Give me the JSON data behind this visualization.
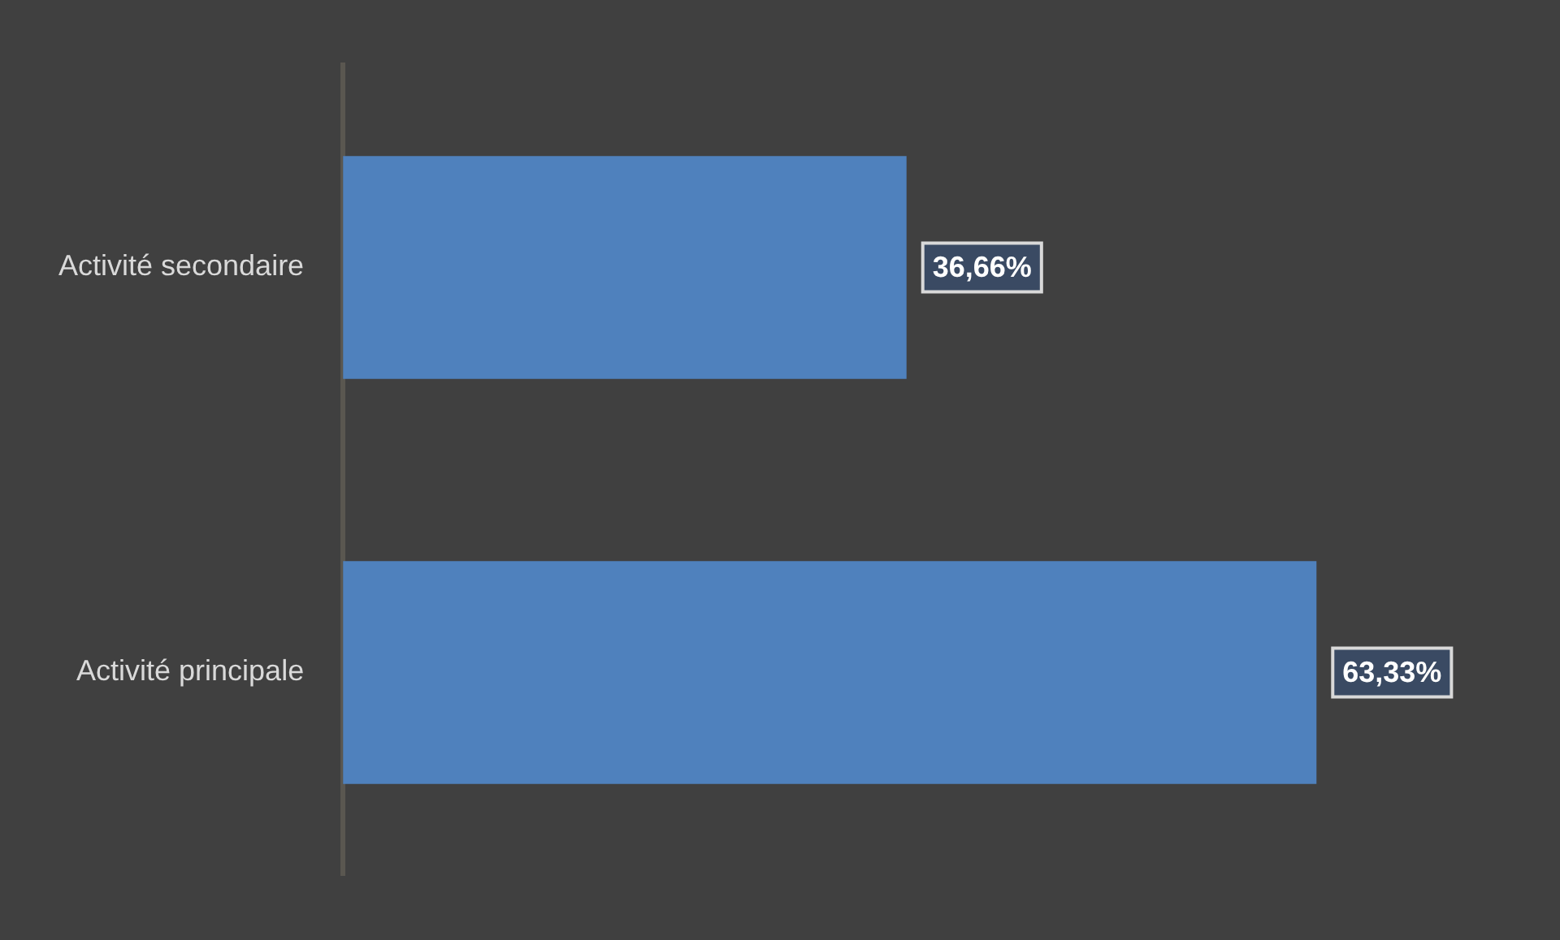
{
  "chart_data": {
    "type": "bar",
    "orientation": "horizontal",
    "categories": [
      "Activité secondaire",
      "Activité principale"
    ],
    "values": [
      36.66,
      63.33
    ],
    "value_labels": [
      "36,66%",
      "63,33%"
    ],
    "color": "#4f81bd"
  }
}
